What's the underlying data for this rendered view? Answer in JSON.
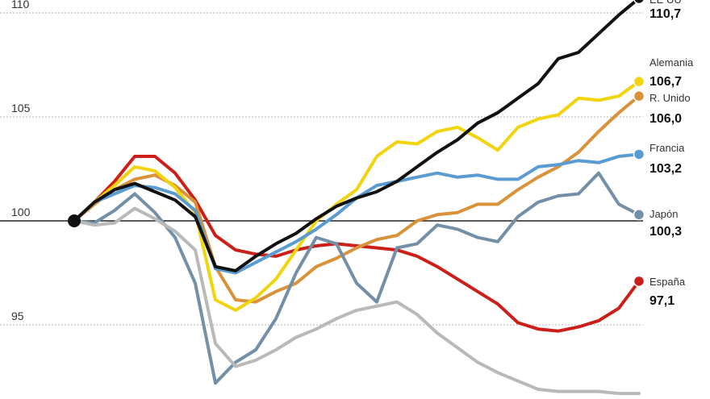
{
  "chart_data": {
    "type": "line",
    "ylim": [
      91.5,
      111
    ],
    "xlim": [
      0,
      28
    ],
    "yticks": [
      {
        "value": 110,
        "label": "110"
      },
      {
        "value": 105,
        "label": "105"
      },
      {
        "value": 100,
        "label": "100"
      },
      {
        "value": 95,
        "label": "95"
      }
    ],
    "grid": true,
    "series": [
      {
        "key": "spain",
        "name": "España",
        "end_label": "97,1",
        "color": "#cc1f1a",
        "values": [
          100,
          100.9,
          101.9,
          103.1,
          103.1,
          102.3,
          101.0,
          99.3,
          98.6,
          98.4,
          98.3,
          98.6,
          98.8,
          98.9,
          98.8,
          98.7,
          98.6,
          98.3,
          97.8,
          97.2,
          96.6,
          96.0,
          95.1,
          94.8,
          94.7,
          94.9,
          95.2,
          95.8,
          97.1
        ]
      },
      {
        "key": "uk",
        "name": "R. Unido",
        "end_label": "106,0",
        "color": "#d9923a",
        "values": [
          100,
          100.8,
          101.5,
          102.0,
          102.2,
          101.7,
          100.9,
          97.8,
          96.2,
          96.1,
          96.6,
          97.0,
          97.8,
          98.2,
          98.7,
          99.1,
          99.3,
          100.0,
          100.3,
          100.4,
          100.8,
          100.8,
          101.5,
          102.1,
          102.6,
          103.3,
          104.3,
          105.2,
          106.0
        ]
      },
      {
        "key": "germany",
        "name": "Alemania",
        "end_label": "106,7",
        "color": "#f2d40c",
        "values": [
          100,
          100.9,
          101.7,
          102.6,
          102.4,
          101.6,
          100.4,
          96.2,
          95.7,
          96.3,
          97.2,
          98.6,
          100.0,
          100.8,
          101.5,
          103.1,
          103.8,
          103.7,
          104.3,
          104.5,
          104.0,
          103.4,
          104.5,
          104.9,
          105.1,
          105.9,
          105.8,
          106.0,
          106.7
        ]
      },
      {
        "key": "france",
        "name": "Francia",
        "end_label": "103,2",
        "color": "#5a9bd1",
        "values": [
          100,
          100.9,
          101.3,
          101.7,
          101.6,
          101.3,
          100.5,
          97.7,
          97.5,
          98.0,
          98.5,
          99.0,
          99.6,
          100.3,
          101.1,
          101.7,
          101.9,
          102.1,
          102.3,
          102.1,
          102.2,
          102.0,
          102.0,
          102.6,
          102.7,
          102.9,
          102.8,
          103.1,
          103.2
        ]
      },
      {
        "key": "japan",
        "name": "Japón",
        "end_label": "100,3",
        "color": "#7390a8",
        "values": [
          100,
          99.9,
          100.5,
          101.3,
          100.4,
          99.2,
          97.0,
          92.2,
          93.2,
          93.8,
          95.3,
          97.5,
          99.2,
          98.9,
          97.0,
          96.1,
          98.7,
          98.9,
          99.8,
          99.6,
          99.2,
          99.0,
          100.2,
          100.9,
          101.2,
          101.3,
          102.3,
          100.8,
          100.3
        ]
      },
      {
        "key": "italy",
        "name": "",
        "end_label": "",
        "color": "#b9b9b9",
        "values": [
          100,
          99.8,
          99.9,
          100.6,
          100.1,
          99.5,
          98.6,
          94.1,
          93.0,
          93.3,
          93.8,
          94.4,
          94.8,
          95.3,
          95.7,
          95.9,
          96.1,
          95.5,
          94.6,
          93.9,
          93.2,
          92.7,
          92.3,
          91.9,
          91.8,
          91.8,
          91.8,
          91.7,
          91.7
        ]
      },
      {
        "key": "usa",
        "name": "EE UU",
        "end_label": "110,7",
        "color": "#111111",
        "values": [
          100,
          100.9,
          101.5,
          101.8,
          101.4,
          101.0,
          100.2,
          97.8,
          97.6,
          98.3,
          98.9,
          99.4,
          100.1,
          100.7,
          101.1,
          101.4,
          101.9,
          102.6,
          103.3,
          103.9,
          104.7,
          105.2,
          105.9,
          106.6,
          107.8,
          108.1,
          109.0,
          109.9,
          110.7
        ]
      }
    ]
  }
}
